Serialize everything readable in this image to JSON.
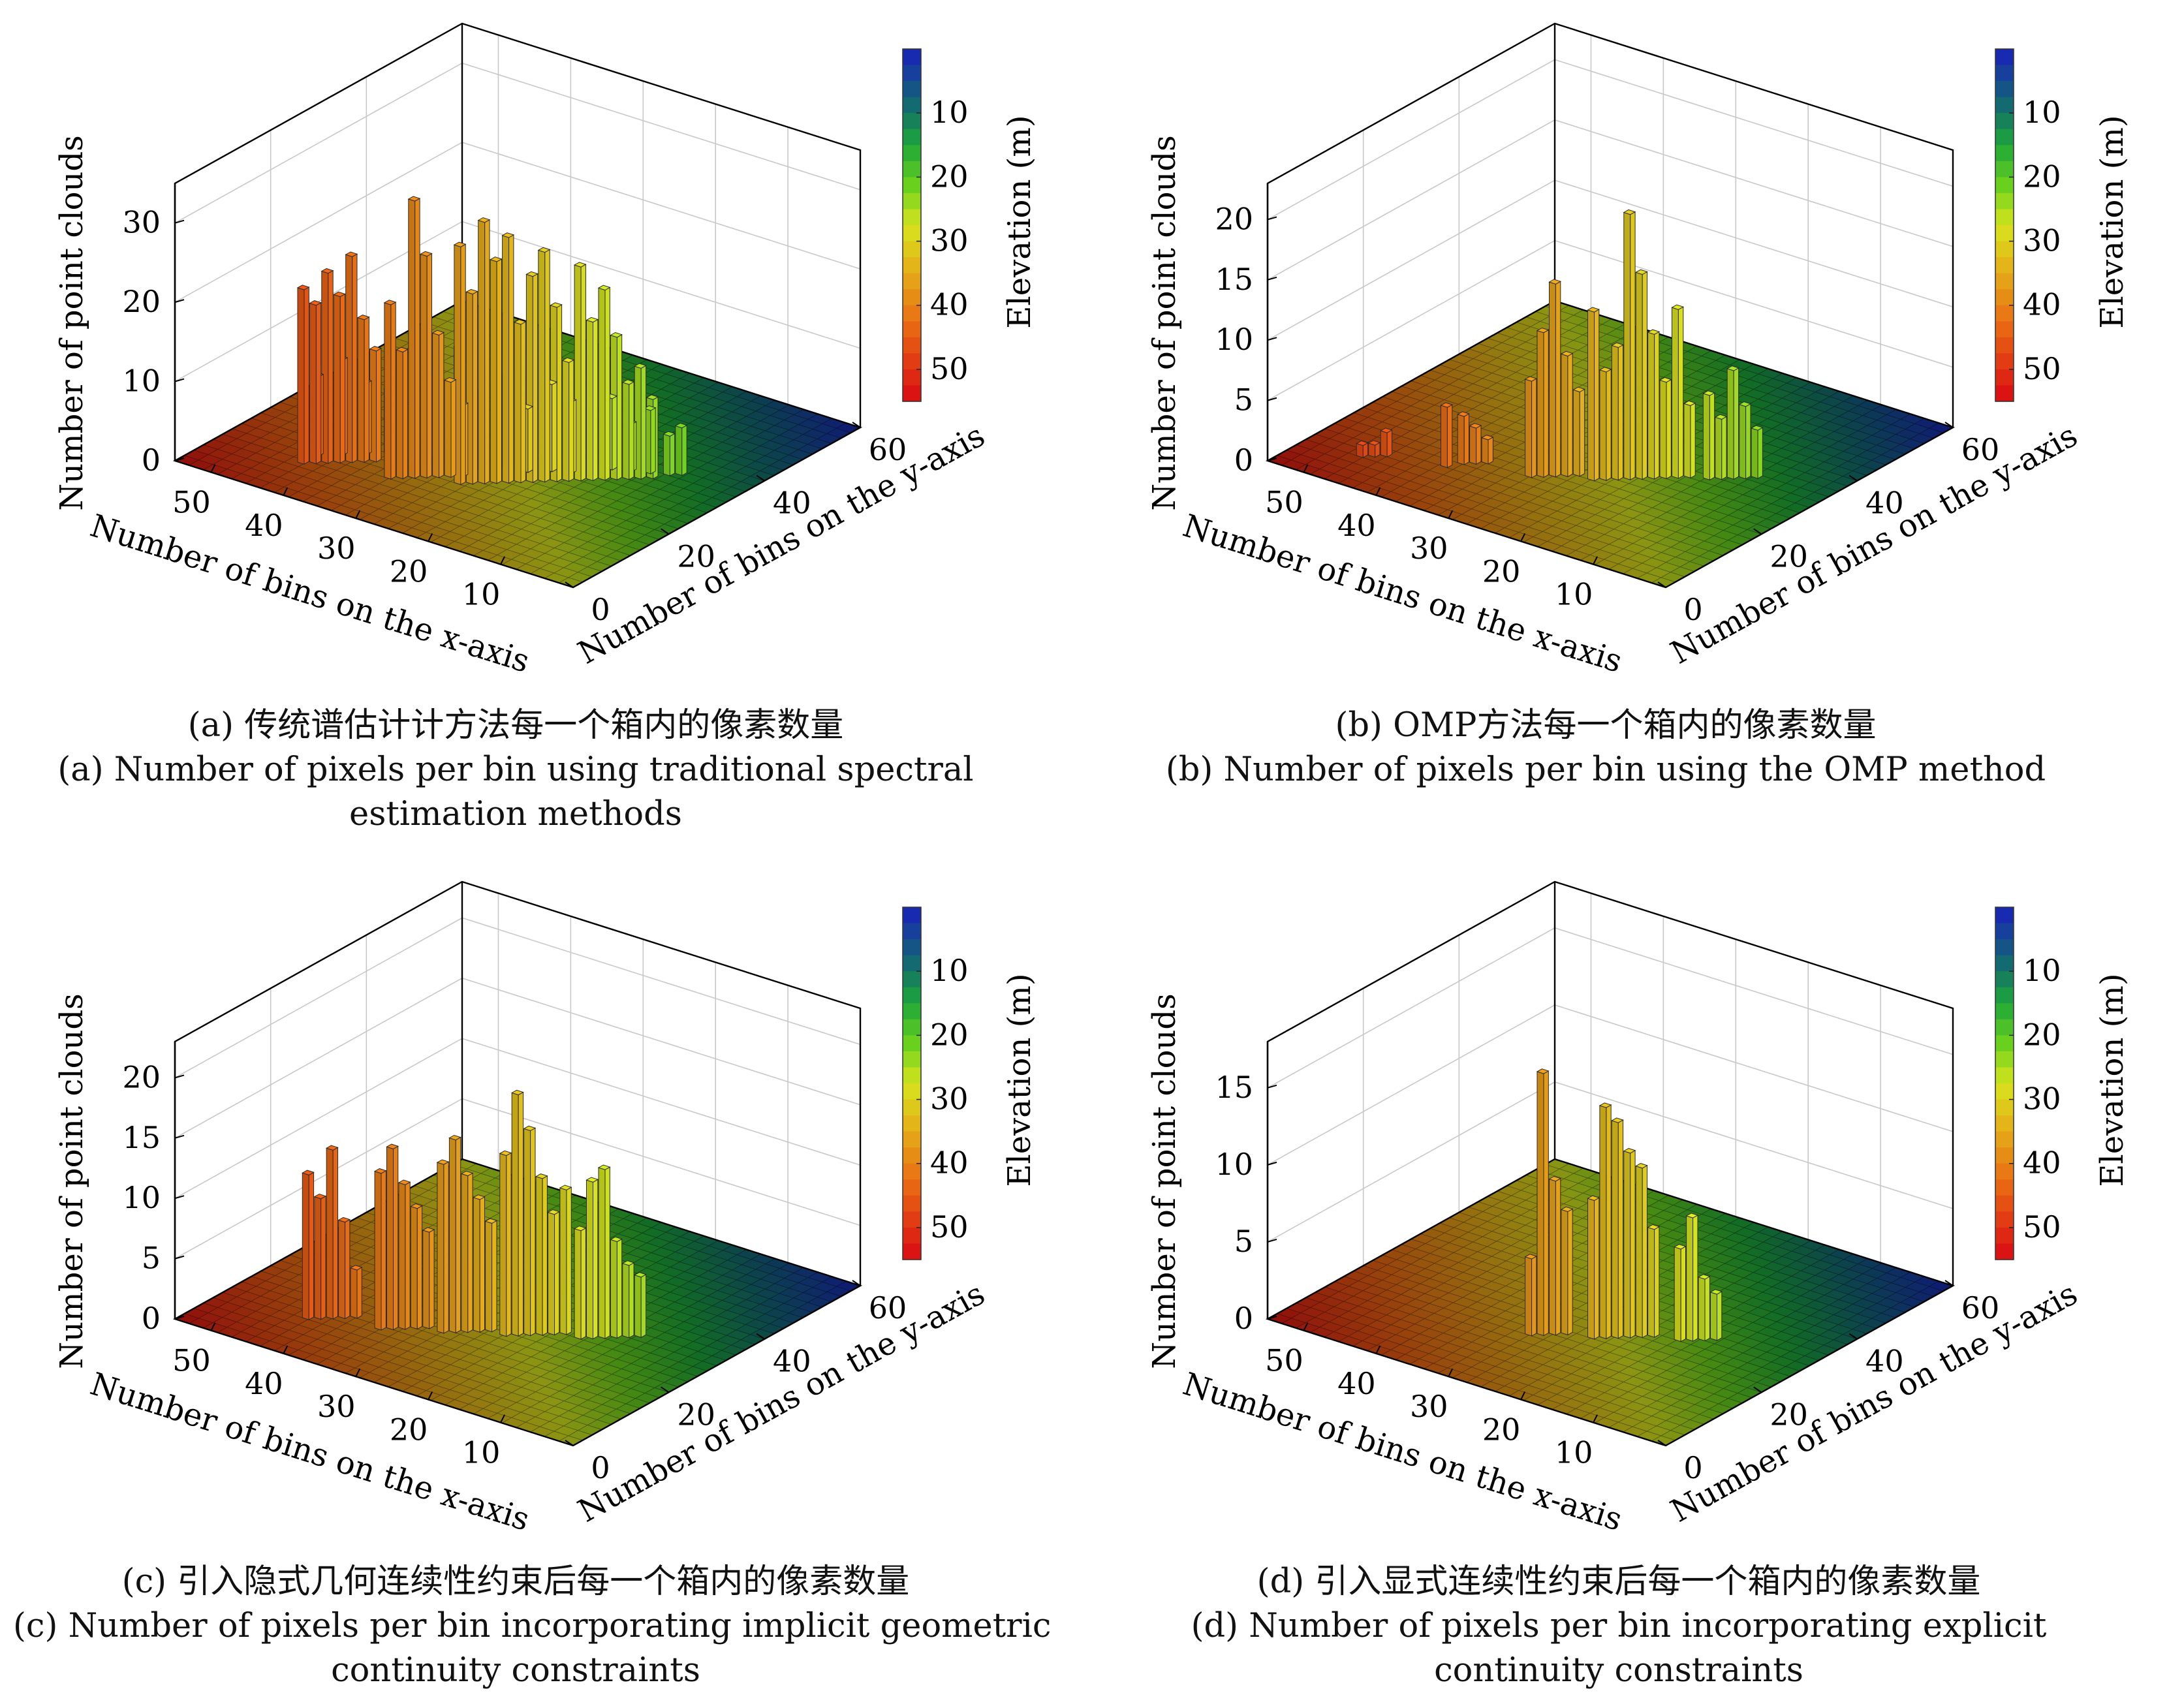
{
  "chart_data": [
    {
      "id": "a",
      "type": "bar3d",
      "title": "",
      "xlabel": "Number of bins on the x-axis",
      "ylabel": "Number of bins on the y-axis",
      "zlabel": "Number of point clouds",
      "x_ticks": [
        "50",
        "40",
        "30",
        "20",
        "10"
      ],
      "y_ticks": [
        "0",
        "20",
        "40",
        "60"
      ],
      "z_ticks": [
        "0",
        "10",
        "20",
        "30"
      ],
      "zlim": [
        0,
        35
      ],
      "xlim": [
        0,
        55
      ],
      "ylim": [
        0,
        60
      ],
      "colorbar": {
        "label": "Elevation (m)",
        "ticks": [
          "10",
          "20",
          "30",
          "40",
          "50"
        ],
        "range": [
          0,
          55
        ]
      },
      "caption_cn": "(a) 传统谱估计计方法每一个箱内的像素数量",
      "caption_en": [
        "(a) Number of pixels per bin using traditional spectral",
        "estimation methods"
      ],
      "bars": [
        [
          44,
          9,
          22
        ],
        [
          43,
          10,
          20
        ],
        [
          42,
          11,
          24
        ],
        [
          41,
          12,
          21
        ],
        [
          40,
          13,
          26
        ],
        [
          39,
          14,
          18
        ],
        [
          38,
          15,
          14
        ],
        [
          44,
          12,
          10
        ],
        [
          42,
          14,
          12
        ],
        [
          40,
          16,
          9
        ],
        [
          38,
          18,
          8
        ],
        [
          36,
          19,
          13
        ],
        [
          34,
          12,
          22
        ],
        [
          33,
          13,
          16
        ],
        [
          32,
          14,
          35
        ],
        [
          31,
          15,
          28
        ],
        [
          30,
          16,
          18
        ],
        [
          29,
          17,
          12
        ],
        [
          28,
          18,
          9
        ],
        [
          35,
          18,
          7
        ],
        [
          33,
          20,
          11
        ],
        [
          31,
          22,
          14
        ],
        [
          29,
          23,
          8
        ],
        [
          27,
          16,
          30
        ],
        [
          26,
          17,
          24
        ],
        [
          25,
          18,
          33
        ],
        [
          24,
          19,
          28
        ],
        [
          23,
          20,
          31
        ],
        [
          22,
          21,
          20
        ],
        [
          21,
          22,
          26
        ],
        [
          20,
          23,
          29
        ],
        [
          19,
          24,
          22
        ],
        [
          18,
          25,
          15
        ],
        [
          27,
          21,
          10
        ],
        [
          25,
          23,
          12
        ],
        [
          23,
          24,
          8
        ],
        [
          21,
          26,
          11
        ],
        [
          19,
          27,
          9
        ],
        [
          17,
          26,
          27
        ],
        [
          16,
          27,
          20
        ],
        [
          15,
          28,
          24
        ],
        [
          14,
          29,
          18
        ],
        [
          13,
          30,
          12
        ],
        [
          12,
          31,
          14
        ],
        [
          11,
          32,
          10
        ],
        [
          18,
          30,
          7
        ],
        [
          16,
          31,
          9
        ],
        [
          14,
          32,
          6
        ],
        [
          12,
          33,
          8
        ],
        [
          10,
          34,
          5
        ],
        [
          9,
          35,
          6
        ]
      ]
    },
    {
      "id": "b",
      "type": "bar3d",
      "title": "",
      "xlabel": "Number of bins on the x-axis",
      "ylabel": "Number of bins on the y-axis",
      "zlabel": "Number of point clouds",
      "x_ticks": [
        "50",
        "40",
        "30",
        "20",
        "10"
      ],
      "y_ticks": [
        "0",
        "20",
        "40",
        "60"
      ],
      "z_ticks": [
        "0",
        "5",
        "10",
        "15",
        "20"
      ],
      "zlim": [
        0,
        23
      ],
      "xlim": [
        0,
        55
      ],
      "ylim": [
        0,
        60
      ],
      "colorbar": {
        "label": "Elevation (m)",
        "ticks": [
          "10",
          "20",
          "30",
          "40",
          "50"
        ],
        "range": [
          0,
          55
        ]
      },
      "caption_cn": "(b) OMP方法每一个箱内的像素数量",
      "caption_en": [
        "(b) Number of pixels per bin using the OMP method"
      ],
      "bars": [
        [
          48,
          8,
          1
        ],
        [
          47,
          9,
          1
        ],
        [
          46,
          10,
          2
        ],
        [
          38,
          14,
          4
        ],
        [
          37,
          15,
          3
        ],
        [
          36,
          16,
          2
        ],
        [
          39,
          12,
          5
        ],
        [
          30,
          16,
          8
        ],
        [
          29,
          17,
          12
        ],
        [
          28,
          18,
          16
        ],
        [
          27,
          19,
          10
        ],
        [
          26,
          20,
          7
        ],
        [
          24,
          20,
          14
        ],
        [
          23,
          21,
          9
        ],
        [
          22,
          22,
          11
        ],
        [
          21,
          23,
          22
        ],
        [
          20,
          24,
          17
        ],
        [
          19,
          25,
          12
        ],
        [
          18,
          26,
          8
        ],
        [
          17,
          27,
          14
        ],
        [
          16,
          28,
          6
        ],
        [
          14,
          29,
          7
        ],
        [
          13,
          30,
          5
        ],
        [
          12,
          31,
          9
        ],
        [
          11,
          32,
          6
        ],
        [
          10,
          33,
          4
        ]
      ]
    },
    {
      "id": "c",
      "type": "bar3d",
      "title": "",
      "xlabel": "Number of bins on the x-axis",
      "ylabel": "Number of bins on the y-axis",
      "zlabel": "Number of point clouds",
      "x_ticks": [
        "50",
        "40",
        "30",
        "20",
        "10"
      ],
      "y_ticks": [
        "0",
        "20",
        "40",
        "60"
      ],
      "z_ticks": [
        "0",
        "5",
        "10",
        "15",
        "20"
      ],
      "zlim": [
        0,
        23
      ],
      "xlim": [
        0,
        55
      ],
      "ylim": [
        0,
        60
      ],
      "colorbar": {
        "label": "Elevation (m)",
        "ticks": [
          "10",
          "20",
          "30",
          "40",
          "50"
        ],
        "range": [
          0,
          55
        ]
      },
      "caption_cn": "(c) 引入隐式几何连续性约束后每一个箱内的像素数量",
      "caption_en": [
        "(c) Number of pixels per bin incorporating implicit geometric",
        "continuity constraints"
      ],
      "bars": [
        [
          44,
          10,
          12
        ],
        [
          43,
          11,
          10
        ],
        [
          42,
          12,
          14
        ],
        [
          41,
          13,
          8
        ],
        [
          40,
          14,
          4
        ],
        [
          36,
          13,
          13
        ],
        [
          35,
          14,
          15
        ],
        [
          34,
          15,
          12
        ],
        [
          33,
          16,
          10
        ],
        [
          32,
          17,
          8
        ],
        [
          30,
          17,
          14
        ],
        [
          29,
          18,
          16
        ],
        [
          28,
          19,
          13
        ],
        [
          27,
          20,
          11
        ],
        [
          26,
          21,
          9
        ],
        [
          24,
          21,
          15
        ],
        [
          23,
          22,
          20
        ],
        [
          22,
          23,
          17
        ],
        [
          21,
          24,
          13
        ],
        [
          20,
          25,
          10
        ],
        [
          19,
          26,
          12
        ],
        [
          17,
          26,
          9
        ],
        [
          16,
          27,
          13
        ],
        [
          15,
          28,
          14
        ],
        [
          14,
          29,
          8
        ],
        [
          13,
          30,
          6
        ],
        [
          12,
          31,
          5
        ]
      ]
    },
    {
      "id": "d",
      "type": "bar3d",
      "title": "",
      "xlabel": "Number of bins on the x-axis",
      "ylabel": "Number of bins on the y-axis",
      "zlabel": "Number of point clouds",
      "x_ticks": [
        "50",
        "40",
        "30",
        "20",
        "10"
      ],
      "y_ticks": [
        "0",
        "20",
        "40",
        "60"
      ],
      "z_ticks": [
        "0",
        "5",
        "10",
        "15"
      ],
      "zlim": [
        0,
        18
      ],
      "xlim": [
        0,
        55
      ],
      "ylim": [
        0,
        60
      ],
      "colorbar": {
        "label": "Elevation (m)",
        "ticks": [
          "10",
          "20",
          "30",
          "40",
          "50"
        ],
        "range": [
          0,
          55
        ]
      },
      "caption_cn": "(d) 引入显式连续性约束后每一个箱内的像素数量",
      "caption_en": [
        "(d) Number of pixels per bin incorporating explicit",
        "continuity constraints"
      ],
      "bars": [
        [
          29,
          17,
          17
        ],
        [
          28,
          18,
          10
        ],
        [
          27,
          19,
          8
        ],
        [
          30,
          16,
          5
        ],
        [
          23,
          21,
          15
        ],
        [
          22,
          22,
          14
        ],
        [
          21,
          23,
          12
        ],
        [
          24,
          20,
          9
        ],
        [
          20,
          24,
          11
        ],
        [
          19,
          25,
          7
        ],
        [
          16,
          26,
          6
        ],
        [
          15,
          27,
          8
        ],
        [
          14,
          28,
          4
        ],
        [
          13,
          29,
          3
        ]
      ]
    }
  ]
}
